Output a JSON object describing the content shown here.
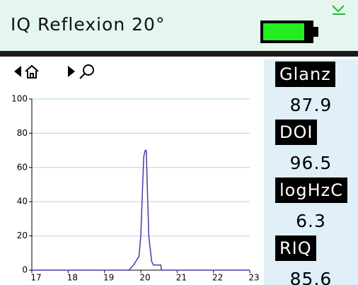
{
  "header": {
    "title": "IQ Reflexion 20°"
  },
  "chart_data": {
    "type": "line",
    "x": [
      17,
      19.67,
      19.8,
      19.95,
      20.0,
      20.08,
      20.12,
      20.15,
      20.22,
      20.3,
      20.35,
      20.55,
      20.57,
      23
    ],
    "series": [
      {
        "color": "#5533aa",
        "values": [
          0,
          0,
          3,
          8,
          20,
          66,
          70,
          70,
          20,
          5,
          3,
          3,
          0,
          0
        ]
      }
    ],
    "xlim": [
      17,
      23
    ],
    "xticks": [
      17,
      18,
      19,
      20,
      21,
      22,
      23
    ],
    "ylim": [
      0,
      100
    ],
    "yticks": [
      0,
      20,
      40,
      60,
      80,
      100
    ],
    "grid": true
  },
  "readings": [
    {
      "label": "Glanz",
      "value": 87.9
    },
    {
      "label": "DOI",
      "value": 96.5
    },
    {
      "label": "logHzC",
      "value": 6.3
    },
    {
      "label": "RIQ",
      "value": 85.6
    }
  ]
}
